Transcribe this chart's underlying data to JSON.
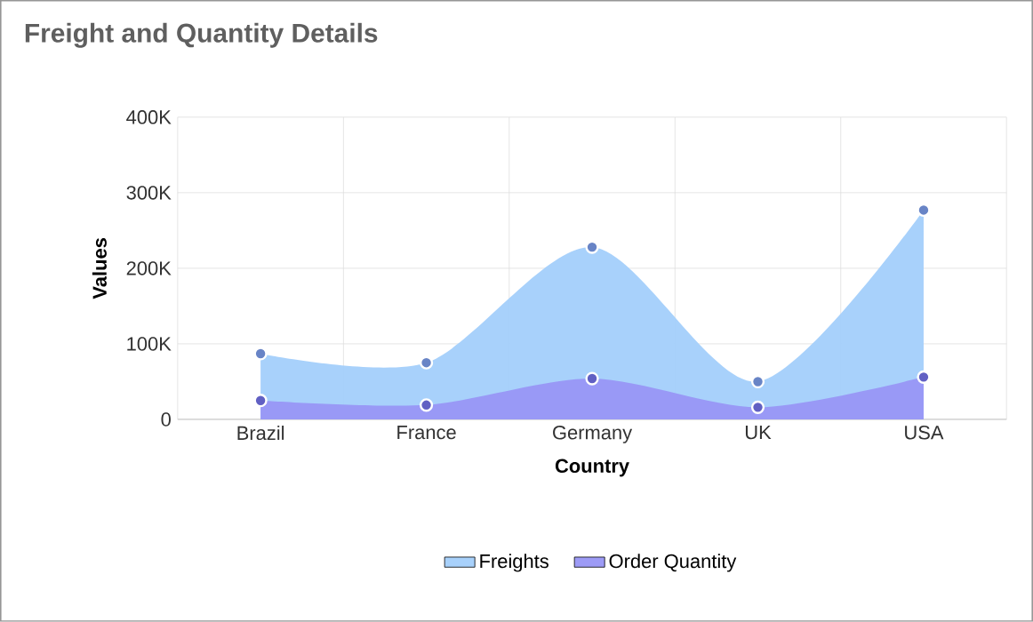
{
  "chart_data": {
    "type": "area",
    "title": "Freight and Quantity Details",
    "xlabel": "Country",
    "ylabel": "Values",
    "categories": [
      "Brazil",
      "France",
      "Germany",
      "UK",
      "USA"
    ],
    "series": [
      {
        "name": "Freights",
        "color": "#a3cffb",
        "values": [
          87000,
          75000,
          228000,
          50000,
          277000
        ]
      },
      {
        "name": "Order Quantity",
        "color": "#9896f6",
        "values": [
          25000,
          19000,
          54000,
          16000,
          56000
        ]
      }
    ],
    "ylim": [
      0,
      400000
    ],
    "yticks": [
      0,
      {
        "value": 100000,
        "label": "100K"
      },
      {
        "value": 200000,
        "label": "200K"
      },
      {
        "value": 300000,
        "label": "300K"
      },
      {
        "value": 400000,
        "label": "400K"
      }
    ],
    "grid": true,
    "legend": "bottom",
    "marker": "circle"
  }
}
